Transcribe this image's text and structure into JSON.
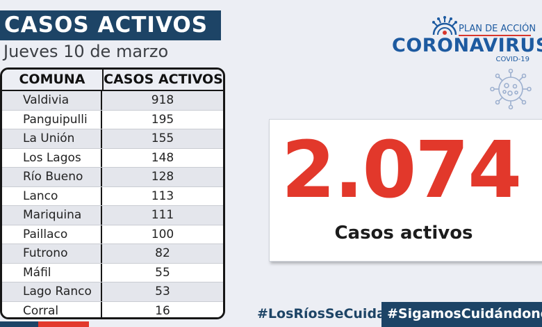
{
  "header": {
    "title": "CASOS ACTIVOS",
    "date": "Jueves 10  de marzo"
  },
  "table": {
    "columns": [
      "COMUNA",
      "CASOS ACTIVOS"
    ],
    "rows": [
      {
        "comuna": "Valdivia",
        "casos": "918"
      },
      {
        "comuna": "Panguipulli",
        "casos": "195"
      },
      {
        "comuna": "La Unión",
        "casos": "155"
      },
      {
        "comuna": "Los Lagos",
        "casos": "148"
      },
      {
        "comuna": "Río Bueno",
        "casos": "128"
      },
      {
        "comuna": "Lanco",
        "casos": "113"
      },
      {
        "comuna": "Mariquina",
        "casos": "111"
      },
      {
        "comuna": "Paillaco",
        "casos": "100"
      },
      {
        "comuna": "Futrono",
        "casos": "82"
      },
      {
        "comuna": "Máfil",
        "casos": "55"
      },
      {
        "comuna": "Lago Ranco",
        "casos": "53"
      },
      {
        "comuna": "Corral",
        "casos": "16"
      }
    ]
  },
  "logo": {
    "plan": "PLAN DE ACCIÓN",
    "name": "CORONAVIRUS",
    "sub": "COVID-19"
  },
  "total": {
    "number": "2.074",
    "label": "Casos activos"
  },
  "hashtags": {
    "first": "#LosRíosSeCuida",
    "second": "#SigamosCuidándonos"
  },
  "colors": {
    "navy": "#1d4466",
    "red": "#e2382b",
    "logo_blue": "#1d5aa0"
  },
  "icons": [
    "virus-icon",
    "virus-outline-icon"
  ]
}
